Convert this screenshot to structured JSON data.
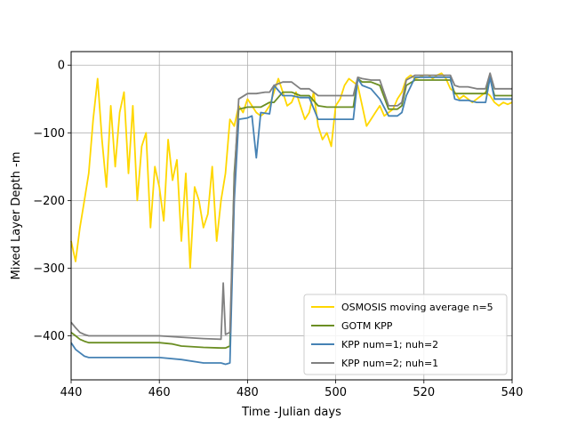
{
  "chart_data": {
    "type": "line",
    "xlabel": "Time -Julian days",
    "ylabel": "Mixed Layer Depth -m",
    "xlim": [
      440,
      540
    ],
    "ylim": [
      -465,
      20
    ],
    "xticks": [
      440,
      460,
      480,
      500,
      520,
      540
    ],
    "xtick_labels": [
      "440",
      "460",
      "480",
      "500",
      "520",
      "540"
    ],
    "yticks": [
      0,
      -100,
      -200,
      -300,
      -400
    ],
    "ytick_labels": [
      "0",
      "−100",
      "−200",
      "−300",
      "−400"
    ],
    "grid": true,
    "legend_position": "lower-right",
    "series": [
      {
        "name": "OSMOSIS moving average n=5",
        "color": "#ffd700",
        "x": [
          440,
          441,
          442,
          443,
          444,
          445,
          446,
          447,
          448,
          449,
          450,
          451,
          452,
          453,
          454,
          455,
          456,
          457,
          458,
          459,
          460,
          461,
          462,
          463,
          464,
          465,
          466,
          467,
          468,
          469,
          470,
          471,
          472,
          473,
          474,
          475,
          476,
          477,
          478,
          479,
          480,
          481,
          482,
          483,
          484,
          485,
          486,
          487,
          488,
          489,
          490,
          491,
          492,
          493,
          494,
          495,
          496,
          497,
          498,
          499,
          500,
          501,
          502,
          503,
          504,
          505,
          506,
          507,
          508,
          509,
          510,
          511,
          512,
          513,
          514,
          515,
          516,
          517,
          518,
          519,
          520,
          521,
          522,
          523,
          524,
          525,
          526,
          527,
          528,
          529,
          530,
          531,
          532,
          533,
          534,
          535,
          536,
          537,
          538,
          539,
          540
        ],
        "y": [
          -260,
          -290,
          -240,
          -200,
          -160,
          -80,
          -20,
          -110,
          -180,
          -60,
          -150,
          -70,
          -40,
          -160,
          -60,
          -200,
          -120,
          -100,
          -240,
          -150,
          -180,
          -230,
          -110,
          -170,
          -140,
          -260,
          -160,
          -300,
          -180,
          -200,
          -240,
          -220,
          -150,
          -260,
          -200,
          -160,
          -80,
          -90,
          -60,
          -70,
          -50,
          -60,
          -70,
          -75,
          -70,
          -60,
          -40,
          -20,
          -40,
          -60,
          -55,
          -40,
          -60,
          -80,
          -70,
          -40,
          -90,
          -110,
          -100,
          -120,
          -60,
          -50,
          -30,
          -20,
          -25,
          -30,
          -60,
          -90,
          -80,
          -70,
          -60,
          -75,
          -70,
          -65,
          -50,
          -40,
          -20,
          -15,
          -20,
          -18,
          -15,
          -15,
          -20,
          -15,
          -12,
          -20,
          -35,
          -40,
          -50,
          -45,
          -50,
          -55,
          -50,
          -45,
          -40,
          -45,
          -55,
          -60,
          -55,
          -58,
          -55
        ]
      },
      {
        "name": "GOTM KPP",
        "color": "#6b8e23",
        "x": [
          440,
          441,
          442,
          443,
          444,
          446,
          450,
          455,
          460,
          463,
          465,
          470,
          474,
          475,
          476,
          477,
          478,
          480,
          482,
          483,
          485,
          486,
          488,
          490,
          492,
          494,
          496,
          498,
          500,
          502,
          504,
          505,
          506,
          508,
          510,
          512,
          514,
          515,
          516,
          518,
          520,
          522,
          524,
          526,
          527,
          528,
          530,
          532,
          534,
          535,
          536,
          538,
          540
        ],
        "y": [
          -395,
          -400,
          -405,
          -408,
          -410,
          -410,
          -410,
          -410,
          -410,
          -412,
          -415,
          -417,
          -418,
          -418,
          -415,
          -160,
          -65,
          -62,
          -62,
          -62,
          -55,
          -55,
          -40,
          -40,
          -45,
          -45,
          -60,
          -62,
          -62,
          -62,
          -62,
          -20,
          -25,
          -25,
          -30,
          -65,
          -65,
          -60,
          -30,
          -22,
          -22,
          -22,
          -22,
          -22,
          -42,
          -42,
          -42,
          -42,
          -42,
          -20,
          -45,
          -45,
          -45
        ]
      },
      {
        "name": "KPP num=1; nuh=2",
        "color": "#4682b4",
        "x": [
          440,
          441,
          442,
          443,
          444,
          446,
          450,
          455,
          460,
          465,
          470,
          474,
          475,
          476,
          477,
          478,
          480,
          481,
          482,
          483,
          485,
          486,
          488,
          490,
          492,
          494,
          496,
          498,
          500,
          502,
          504,
          505,
          506,
          508,
          510,
          512,
          514,
          515,
          516,
          518,
          520,
          522,
          524,
          526,
          527,
          528,
          530,
          532,
          534,
          535,
          536,
          538,
          540
        ],
        "y": [
          -410,
          -420,
          -425,
          -430,
          -432,
          -432,
          -432,
          -432,
          -432,
          -435,
          -440,
          -440,
          -442,
          -440,
          -200,
          -80,
          -78,
          -75,
          -137,
          -70,
          -72,
          -30,
          -45,
          -45,
          -48,
          -48,
          -80,
          -80,
          -80,
          -80,
          -80,
          -20,
          -30,
          -35,
          -50,
          -75,
          -75,
          -70,
          -45,
          -18,
          -18,
          -18,
          -18,
          -18,
          -50,
          -52,
          -52,
          -55,
          -55,
          -18,
          -50,
          -50,
          -50
        ]
      },
      {
        "name": "KPP num=2; nuh=1",
        "color": "#808080",
        "x": [
          440,
          441,
          442,
          443,
          444,
          446,
          450,
          455,
          460,
          465,
          470,
          474,
          474.5,
          475,
          476,
          477,
          478,
          480,
          482,
          484,
          485,
          486,
          488,
          490,
          492,
          494,
          496,
          498,
          500,
          502,
          504,
          505,
          506,
          508,
          510,
          512,
          514,
          515,
          516,
          518,
          520,
          522,
          524,
          526,
          527,
          528,
          530,
          532,
          534,
          535,
          536,
          538,
          540
        ],
        "y": [
          -380,
          -388,
          -395,
          -398,
          -400,
          -400,
          -400,
          -400,
          -400,
          -402,
          -404,
          -405,
          -322,
          -398,
          -395,
          -170,
          -50,
          -42,
          -42,
          -40,
          -40,
          -30,
          -25,
          -25,
          -35,
          -35,
          -45,
          -45,
          -45,
          -45,
          -45,
          -18,
          -20,
          -22,
          -22,
          -60,
          -60,
          -55,
          -22,
          -15,
          -15,
          -15,
          -15,
          -15,
          -30,
          -32,
          -32,
          -35,
          -35,
          -12,
          -35,
          -35,
          -35
        ]
      }
    ]
  }
}
